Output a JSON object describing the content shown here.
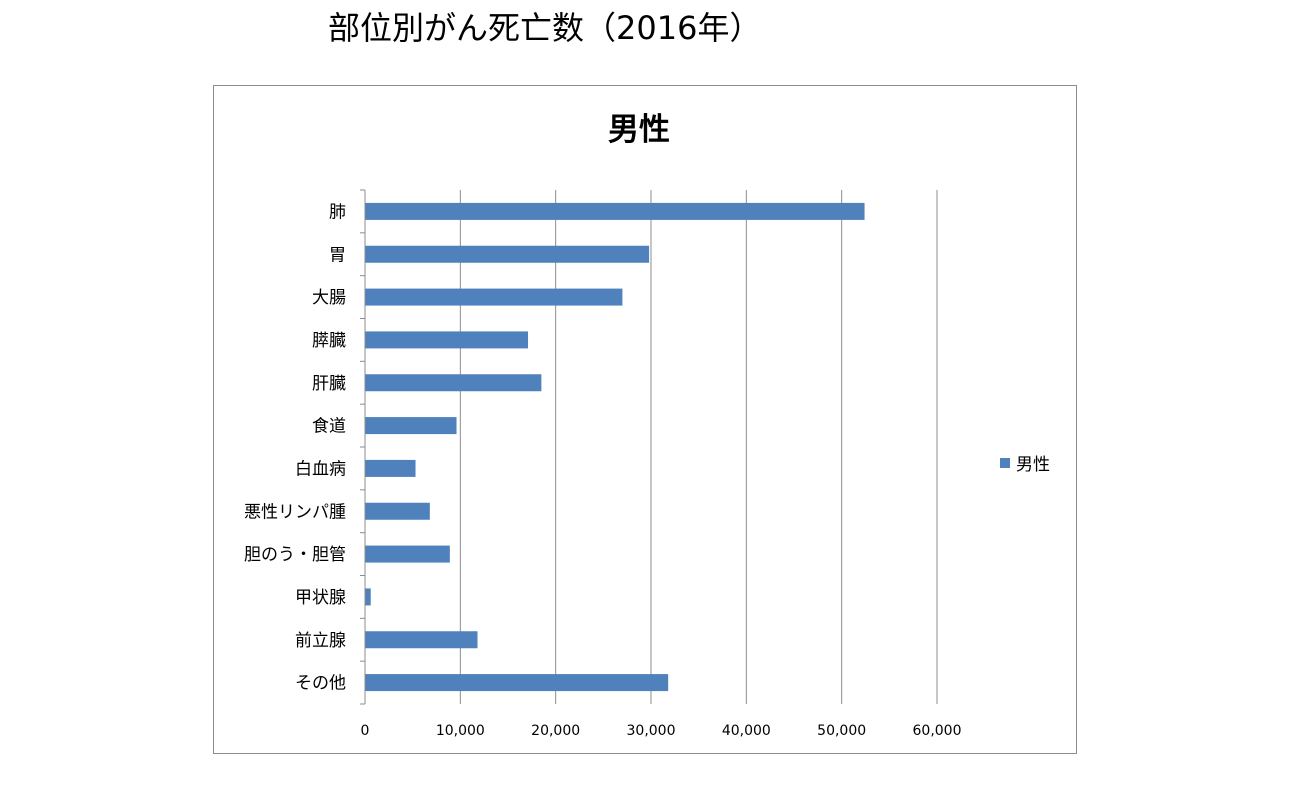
{
  "page_title": "部位別がん死亡数（2016年）",
  "colors": {
    "bar": "#4f81bd",
    "grid": "#8c8c8c",
    "frame": "#8c8c8c"
  },
  "chart_data": {
    "type": "bar",
    "orientation": "horizontal",
    "title": "男性",
    "categories": [
      "肺",
      "胃",
      "大腸",
      "膵臓",
      "肝臓",
      "食道",
      "白血病",
      "悪性リンパ腫",
      "胆のう・胆管",
      "甲状腺",
      "前立腺",
      "その他"
    ],
    "series": [
      {
        "name": "男性",
        "values": [
          52400,
          29800,
          27000,
          17100,
          18500,
          9600,
          5300,
          6800,
          8900,
          600,
          11800,
          31800
        ]
      }
    ],
    "xlim": [
      0,
      60000
    ],
    "xticks": [
      "0",
      "10,000",
      "20,000",
      "30,000",
      "40,000",
      "50,000",
      "60,000"
    ],
    "xtick_values": [
      0,
      10000,
      20000,
      30000,
      40000,
      50000,
      60000
    ],
    "grid": "vertical",
    "legend_position": "right"
  }
}
